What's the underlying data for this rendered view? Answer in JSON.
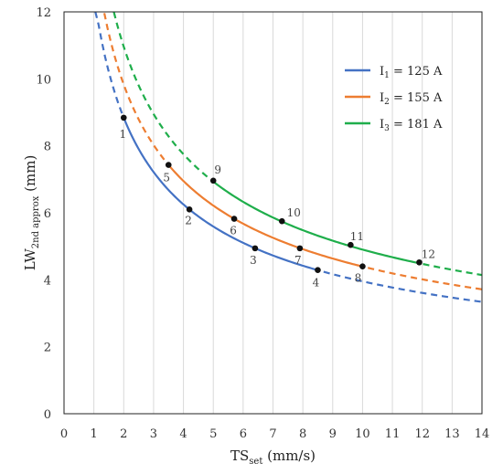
{
  "chart_data": {
    "type": "line",
    "xlabel": {
      "main": "TS",
      "sub": "set",
      "unit": " (mm/s)"
    },
    "ylabel": {
      "main": "LW",
      "sub": "2nd approx",
      "unit": " (mm)"
    },
    "xlim": [
      0,
      14
    ],
    "ylim": [
      0,
      12
    ],
    "xticks": [
      "0",
      "1",
      "2",
      "3",
      "4",
      "5",
      "6",
      "7",
      "8",
      "9",
      "10",
      "11",
      "12",
      "13",
      "14"
    ],
    "yticks": [
      "0",
      "2",
      "4",
      "6",
      "8",
      "10",
      "12"
    ],
    "grid": {
      "x": true,
      "y": false
    },
    "legend": "top-right",
    "series": [
      {
        "name": "I1 = 125 A",
        "legend": {
          "sym": "I",
          "sub": "1",
          "rest": " = 125 A"
        },
        "color": "#4472C4",
        "coef": 12.5,
        "range": [
          2.0,
          8.5
        ],
        "dashed_range": [
          1.05,
          14.0
        ],
        "points": [
          {
            "id": "1",
            "x": 2.0,
            "y": 8.84
          },
          {
            "id": "2",
            "x": 4.2,
            "y": 6.1
          },
          {
            "id": "3",
            "x": 6.4,
            "y": 4.94
          },
          {
            "id": "4",
            "x": 8.5,
            "y": 4.29
          }
        ]
      },
      {
        "name": "I2 = 155 A",
        "legend": {
          "sym": "I",
          "sub": "2",
          "rest": " = 155 A"
        },
        "color": "#ED7D31",
        "coef": 13.9,
        "range": [
          3.5,
          10.0
        ],
        "dashed_range": [
          1.35,
          14.0
        ],
        "points": [
          {
            "id": "5",
            "x": 3.5,
            "y": 7.43
          },
          {
            "id": "6",
            "x": 5.7,
            "y": 5.82
          },
          {
            "id": "7",
            "x": 7.9,
            "y": 4.94
          },
          {
            "id": "8",
            "x": 10.0,
            "y": 4.4
          }
        ]
      },
      {
        "name": "I3 = 181 A",
        "legend": {
          "sym": "I",
          "sub": "3",
          "rest": " = 181 A"
        },
        "color": "#1FAE4B",
        "coef": 15.5,
        "range": [
          5.0,
          11.9
        ],
        "dashed_range": [
          1.67,
          14.0
        ],
        "points": [
          {
            "id": "9",
            "x": 5.0,
            "y": 6.96
          },
          {
            "id": "10",
            "x": 7.3,
            "y": 5.75
          },
          {
            "id": "11",
            "x": 9.6,
            "y": 5.04
          },
          {
            "id": "12",
            "x": 11.9,
            "y": 4.52
          }
        ]
      }
    ]
  }
}
